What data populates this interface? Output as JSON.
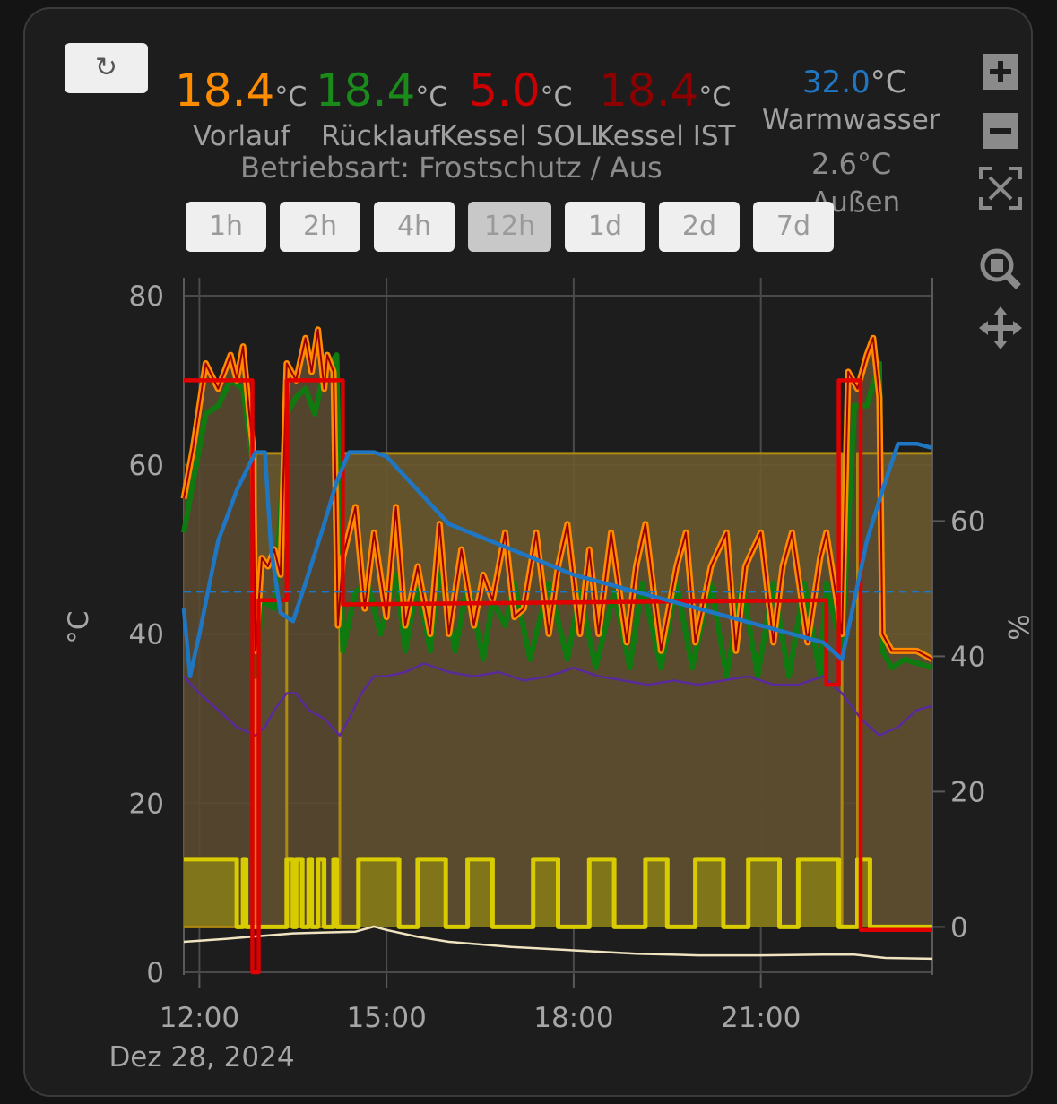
{
  "readings": [
    {
      "value": "18.4",
      "unit": "°C",
      "label": "Vorlauf",
      "color": "#ff8c00"
    },
    {
      "value": "18.4",
      "unit": "°C",
      "label": "Rücklauf",
      "color": "#1a8a1a"
    },
    {
      "value": "5.0",
      "unit": "°C",
      "label": "Kessel SOLL",
      "color": "#cc0000"
    },
    {
      "value": "18.4",
      "unit": "°C",
      "label": "Kessel IST",
      "color": "#8b0000"
    }
  ],
  "mode_text": "Betriebsart: Frostschutz / Aus",
  "warmwasser": {
    "value": "32.0",
    "unit": "°C",
    "label": "Warmwasser",
    "color": "#1f77c4"
  },
  "aussen": {
    "value": "2.6°C",
    "label": "Außen"
  },
  "ranges": [
    {
      "label": "1h",
      "active": false
    },
    {
      "label": "2h",
      "active": false
    },
    {
      "label": "4h",
      "active": false
    },
    {
      "label": "12h",
      "active": true
    },
    {
      "label": "1d",
      "active": false
    },
    {
      "label": "2d",
      "active": false
    },
    {
      "label": "7d",
      "active": false
    }
  ],
  "tools": [
    "zoom-in-icon",
    "zoom-out-icon",
    "autoscale-icon",
    "zoom-box-icon",
    "pan-icon"
  ],
  "chart_data": {
    "type": "line",
    "x_unit": "hours of day, 28 Dec 2024",
    "xlim": [
      11.75,
      23.75
    ],
    "x_ticks": [
      {
        "v": 12,
        "label": "12:00"
      },
      {
        "v": 15,
        "label": "15:00"
      },
      {
        "v": 18,
        "label": "18:00"
      },
      {
        "v": 21,
        "label": "21:00"
      }
    ],
    "x_date_label": "Dez 28, 2024",
    "ylabel": "°C",
    "ylim": [
      0,
      80
    ],
    "y_ticks": [
      0,
      20,
      40,
      60,
      80
    ],
    "y2label": "%",
    "y2lim": [
      -6.7,
      93.3
    ],
    "y2_ticks": [
      0,
      20,
      40,
      60
    ],
    "grid": true,
    "warmwasser_setpoint": 45,
    "series": [
      {
        "key": "pump",
        "axis": "y2",
        "color": "#b08a10",
        "fill": "#6a5a30",
        "step": true,
        "x": [
          11.75,
          12.9,
          12.9,
          13.4,
          13.4,
          14.25,
          14.25,
          22.3,
          22.3,
          22.55,
          22.55,
          23.75
        ],
        "y": [
          0,
          0,
          70,
          70,
          0,
          0,
          70,
          70,
          0,
          0,
          70,
          70
        ]
      },
      {
        "key": "vorlauf",
        "axis": "y",
        "color": "#ff8c00",
        "fill": "#5a4a30",
        "x": [
          11.75,
          11.9,
          12.1,
          12.3,
          12.5,
          12.6,
          12.7,
          12.8,
          12.86,
          12.9,
          13.0,
          13.1,
          13.2,
          13.3,
          13.4,
          13.55,
          13.7,
          13.8,
          13.9,
          14.0,
          14.05,
          14.15,
          14.22,
          14.3,
          14.5,
          14.65,
          14.8,
          15.0,
          15.15,
          15.3,
          15.5,
          15.7,
          15.85,
          16.0,
          16.2,
          16.4,
          16.55,
          16.7,
          16.9,
          17.05,
          17.2,
          17.4,
          17.6,
          17.75,
          17.9,
          18.1,
          18.25,
          18.4,
          18.6,
          18.85,
          19.0,
          19.15,
          19.4,
          19.65,
          19.8,
          19.95,
          20.2,
          20.45,
          20.6,
          20.75,
          21.0,
          21.2,
          21.35,
          21.5,
          21.75,
          21.95,
          22.05,
          22.3,
          22.4,
          22.55,
          22.7,
          22.8,
          22.9,
          22.95,
          23.1,
          23.3,
          23.5,
          23.75
        ],
        "y": [
          56,
          62,
          72,
          69,
          73,
          70,
          74,
          66,
          62,
          38,
          49,
          48,
          50,
          47,
          72,
          70,
          75,
          71,
          76,
          69,
          73,
          71,
          41,
          49,
          55,
          43,
          52,
          42,
          55,
          41,
          48,
          40,
          53,
          40,
          50,
          41,
          47,
          44,
          52,
          42,
          43,
          52,
          40,
          48,
          53,
          40,
          50,
          40,
          52,
          39,
          48,
          53,
          38,
          48,
          52,
          39,
          48,
          52,
          38,
          48,
          52,
          39,
          48,
          52,
          39,
          49,
          52,
          40,
          71,
          69,
          73,
          75,
          68,
          40,
          38,
          38,
          38,
          37
        ]
      },
      {
        "key": "ruecklauf",
        "axis": "y",
        "color": "#0f7a0f",
        "x": [
          11.75,
          11.9,
          12.1,
          12.3,
          12.5,
          12.7,
          12.86,
          12.9,
          13.0,
          13.2,
          13.4,
          13.55,
          13.7,
          13.85,
          14.0,
          14.2,
          14.3,
          14.5,
          14.7,
          14.9,
          15.15,
          15.3,
          15.5,
          15.7,
          15.85,
          16.1,
          16.3,
          16.55,
          16.7,
          16.9,
          17.05,
          17.3,
          17.6,
          17.9,
          18.1,
          18.35,
          18.65,
          18.9,
          19.1,
          19.4,
          19.65,
          19.9,
          20.2,
          20.45,
          20.7,
          20.95,
          21.2,
          21.45,
          21.7,
          21.95,
          22.05,
          22.3,
          22.5,
          22.7,
          22.9,
          22.95,
          23.1,
          23.3,
          23.75
        ],
        "y": [
          52,
          58,
          66,
          67,
          70,
          69,
          60,
          35,
          44,
          43,
          66,
          68,
          69,
          66,
          71,
          73,
          38,
          45,
          46,
          40,
          47,
          38,
          46,
          38,
          48,
          38,
          46,
          37,
          44,
          41,
          46,
          37,
          46,
          37,
          45,
          36,
          45,
          36,
          46,
          36,
          46,
          36,
          46,
          35,
          46,
          35,
          46,
          35,
          46,
          35,
          46,
          38,
          67,
          67,
          72,
          38,
          36,
          37,
          36
        ]
      },
      {
        "key": "kessel_soll",
        "axis": "y",
        "color": "#e00000",
        "step": true,
        "x": [
          11.75,
          12.85,
          12.85,
          12.95,
          12.95,
          13.4,
          13.4,
          14.3,
          14.3,
          22.05,
          22.05,
          22.25,
          22.25,
          22.6,
          22.6,
          23.75
        ],
        "y": [
          70,
          70,
          0,
          0,
          44,
          44,
          70,
          70,
          43.5,
          44,
          34,
          34,
          70,
          70,
          5,
          5
        ]
      },
      {
        "key": "kessel_ist",
        "axis": "y",
        "color": "#990000",
        "width": 2,
        "x": [
          11.75,
          11.9,
          12.1,
          12.3,
          12.5,
          12.6,
          12.7,
          12.8,
          12.86,
          12.9,
          13.0,
          13.1,
          13.2,
          13.3,
          13.4,
          13.55,
          13.7,
          13.8,
          13.9,
          14.0,
          14.05,
          14.15,
          14.22,
          14.3,
          14.5,
          14.65,
          14.8,
          15.0,
          15.15,
          15.3,
          15.5,
          15.7,
          15.85,
          16.0,
          16.2,
          16.4,
          16.55,
          16.7,
          16.9,
          17.05,
          17.2,
          17.4,
          17.6,
          17.75,
          17.9,
          18.1,
          18.25,
          18.4,
          18.6,
          18.85,
          19.0,
          19.15,
          19.4,
          19.65,
          19.8,
          19.95,
          20.2,
          20.45,
          20.6,
          20.75,
          21.0,
          21.2,
          21.35,
          21.5,
          21.75,
          21.95,
          22.05,
          22.3,
          22.4,
          22.55,
          22.7,
          22.8,
          22.9,
          22.95,
          23.1,
          23.3,
          23.5,
          23.75
        ],
        "y": [
          56,
          62,
          72,
          69,
          73,
          70,
          74,
          66,
          62,
          38,
          49,
          48,
          50,
          47,
          72,
          70,
          75,
          71,
          76,
          69,
          73,
          71,
          41,
          49,
          55,
          43,
          52,
          42,
          55,
          41,
          48,
          40,
          53,
          40,
          50,
          41,
          47,
          44,
          52,
          42,
          43,
          52,
          40,
          48,
          53,
          40,
          50,
          40,
          52,
          39,
          48,
          53,
          38,
          48,
          52,
          39,
          48,
          52,
          38,
          48,
          52,
          39,
          48,
          52,
          39,
          49,
          52,
          40,
          71,
          69,
          73,
          75,
          68,
          40,
          38,
          38,
          38,
          37
        ]
      },
      {
        "key": "warmwasser",
        "axis": "y",
        "color": "#1f77c4",
        "x": [
          11.75,
          11.85,
          12.0,
          12.3,
          12.6,
          12.9,
          13.05,
          13.15,
          13.3,
          13.5,
          13.7,
          14.0,
          14.2,
          14.4,
          14.8,
          15.0,
          15.5,
          16.0,
          17.0,
          18.0,
          19.0,
          20.0,
          21.0,
          22.0,
          22.3,
          22.5,
          22.7,
          22.95,
          23.2,
          23.5,
          23.75
        ],
        "y": [
          43,
          35,
          40,
          51,
          57,
          61.5,
          61.5,
          50,
          42.5,
          41.5,
          46,
          53,
          58,
          61.5,
          61.5,
          61,
          57,
          53,
          50,
          47,
          45,
          43,
          41,
          39,
          37,
          44,
          51,
          57,
          62.5,
          62.5,
          62
        ]
      },
      {
        "key": "purple",
        "axis": "y",
        "color": "#5a2a9a",
        "width": 2,
        "step": true,
        "x": [
          11.75,
          12.0,
          12.3,
          12.6,
          12.9,
          13.05,
          13.2,
          13.4,
          13.55,
          13.75,
          14.0,
          14.25,
          14.4,
          14.6,
          14.8,
          15.0,
          15.3,
          15.6,
          16.0,
          16.4,
          16.8,
          17.2,
          17.6,
          18.0,
          18.4,
          18.8,
          19.2,
          19.6,
          20.0,
          20.4,
          20.8,
          21.2,
          21.6,
          22.0,
          22.3,
          22.6,
          22.9,
          23.2,
          23.5,
          23.75
        ],
        "y": [
          35,
          33,
          31,
          29,
          28,
          29,
          31,
          33,
          33,
          31,
          30,
          28,
          30,
          33,
          35,
          35,
          35.5,
          36.5,
          35.5,
          35,
          35.5,
          34.5,
          35,
          36,
          35,
          34.5,
          34,
          34.5,
          34,
          34.5,
          35,
          34,
          34,
          35,
          33,
          30,
          28,
          29,
          31,
          31.5
        ]
      },
      {
        "key": "aussen",
        "axis": "y",
        "color": "#f0e4c0",
        "width": 2,
        "x": [
          11.75,
          12.5,
          13.0,
          13.5,
          14.0,
          14.5,
          14.8,
          15.0,
          15.5,
          16.0,
          17.0,
          18.0,
          19.0,
          20.0,
          21.0,
          22.0,
          22.5,
          23.0,
          23.75
        ],
        "y": [
          3.6,
          4.0,
          4.3,
          4.6,
          4.7,
          4.8,
          5.4,
          5.0,
          4.2,
          3.6,
          3.0,
          2.6,
          2.2,
          2.0,
          2.0,
          2.1,
          2.1,
          1.7,
          1.6
        ]
      },
      {
        "key": "brenner",
        "axis": "y2",
        "color": "#d8cc00",
        "fill": "#857a18",
        "step": true,
        "x": [
          11.75,
          12.6,
          12.6,
          12.7,
          12.7,
          12.75,
          12.75,
          13.4,
          13.4,
          13.5,
          13.5,
          13.55,
          13.55,
          13.65,
          13.65,
          13.75,
          13.75,
          13.8,
          13.8,
          13.9,
          13.9,
          14.0,
          14.0,
          14.15,
          14.15,
          14.2,
          14.2,
          14.55,
          14.55,
          15.2,
          15.2,
          15.5,
          15.5,
          15.95,
          15.95,
          16.3,
          16.3,
          16.7,
          16.7,
          17.35,
          17.35,
          17.75,
          17.75,
          18.25,
          18.25,
          18.65,
          18.65,
          19.15,
          19.15,
          19.5,
          19.5,
          19.95,
          19.95,
          20.4,
          20.4,
          20.8,
          20.8,
          21.3,
          21.3,
          21.6,
          21.6,
          22.25,
          22.25,
          22.55,
          22.55,
          22.75,
          22.75,
          23.75
        ],
        "y": [
          10,
          10,
          0,
          0,
          10,
          10,
          0,
          0,
          10,
          10,
          0,
          0,
          10,
          10,
          0,
          0,
          10,
          10,
          0,
          0,
          10,
          10,
          0,
          0,
          10,
          10,
          0,
          0,
          10,
          10,
          0,
          0,
          10,
          10,
          0,
          0,
          10,
          10,
          0,
          0,
          10,
          10,
          0,
          0,
          10,
          10,
          0,
          0,
          10,
          10,
          0,
          0,
          10,
          10,
          0,
          0,
          10,
          10,
          0,
          0,
          10,
          10,
          0,
          0,
          10,
          10,
          0,
          0
        ]
      }
    ]
  }
}
